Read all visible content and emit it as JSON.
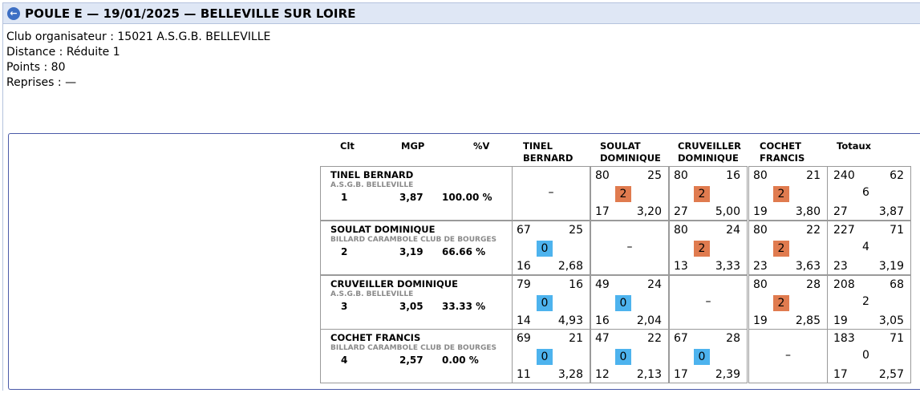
{
  "header": {
    "title": "POULE E — 19/01/2025 — BELLEVILLE SUR LOIRE",
    "back_icon": "arrow-left-circle-icon"
  },
  "info": {
    "club": "Club organisateur : 15021 A.S.G.B. BELLEVILLE",
    "distance": "Distance : Réduite 1",
    "points": "Points : 80",
    "reprises": "Reprises : —"
  },
  "table": {
    "headers": {
      "clt": "Clt",
      "mgp": "MGP",
      "pctv": "%V",
      "col1_a": "TINEL",
      "col1_b": "BERNARD",
      "col2_a": "SOULAT",
      "col2_b": "DOMINIQUE",
      "col3_a": "CRUVEILLER",
      "col3_b": "DOMINIQUE",
      "col4_a": "COCHET",
      "col4_b": "FRANCIS",
      "totals": "Totaux"
    },
    "dash": "–",
    "colors": {
      "win": "#e07b4f",
      "loss": "#4db3ee"
    },
    "rows": [
      {
        "name": "TINEL BERNARD",
        "club": "A.S.G.B. BELLEVILLE",
        "rank": "1",
        "mgp": "3,87",
        "pct": "100.00 %",
        "cells": [
          null,
          {
            "pts": "80",
            "opp": "25",
            "badge": "2",
            "rep": "17",
            "avg": "3,20"
          },
          {
            "pts": "80",
            "opp": "16",
            "badge": "2",
            "rep": "27",
            "avg": "5,00"
          },
          {
            "pts": "80",
            "opp": "21",
            "badge": "2",
            "rep": "19",
            "avg": "3,80"
          }
        ],
        "totals": {
          "pts": "240",
          "opp": "62",
          "mp": "6",
          "rep": "27",
          "avg": "3,87"
        }
      },
      {
        "name": "SOULAT DOMINIQUE",
        "club": "BILLARD CARAMBOLE CLUB DE BOURGES",
        "rank": "2",
        "mgp": "3,19",
        "pct": "66.66 %",
        "cells": [
          {
            "pts": "67",
            "opp": "25",
            "badge": "0",
            "rep": "16",
            "avg": "2,68"
          },
          null,
          {
            "pts": "80",
            "opp": "24",
            "badge": "2",
            "rep": "13",
            "avg": "3,33"
          },
          {
            "pts": "80",
            "opp": "22",
            "badge": "2",
            "rep": "23",
            "avg": "3,63"
          }
        ],
        "totals": {
          "pts": "227",
          "opp": "71",
          "mp": "4",
          "rep": "23",
          "avg": "3,19"
        }
      },
      {
        "name": "CRUVEILLER DOMINIQUE",
        "club": "A.S.G.B. BELLEVILLE",
        "rank": "3",
        "mgp": "3,05",
        "pct": "33.33 %",
        "cells": [
          {
            "pts": "79",
            "opp": "16",
            "badge": "0",
            "rep": "14",
            "avg": "4,93"
          },
          {
            "pts": "49",
            "opp": "24",
            "badge": "0",
            "rep": "16",
            "avg": "2,04"
          },
          null,
          {
            "pts": "80",
            "opp": "28",
            "badge": "2",
            "rep": "19",
            "avg": "2,85"
          }
        ],
        "totals": {
          "pts": "208",
          "opp": "68",
          "mp": "2",
          "rep": "19",
          "avg": "3,05"
        }
      },
      {
        "name": "COCHET FRANCIS",
        "club": "BILLARD CARAMBOLE CLUB DE BOURGES",
        "rank": "4",
        "mgp": "2,57",
        "pct": "0.00 %",
        "cells": [
          {
            "pts": "69",
            "opp": "21",
            "badge": "0",
            "rep": "11",
            "avg": "3,28"
          },
          {
            "pts": "47",
            "opp": "22",
            "badge": "0",
            "rep": "12",
            "avg": "2,13"
          },
          {
            "pts": "67",
            "opp": "28",
            "badge": "0",
            "rep": "17",
            "avg": "2,39"
          },
          null
        ],
        "totals": {
          "pts": "183",
          "opp": "71",
          "mp": "0",
          "rep": "17",
          "avg": "2,57"
        }
      }
    ]
  }
}
